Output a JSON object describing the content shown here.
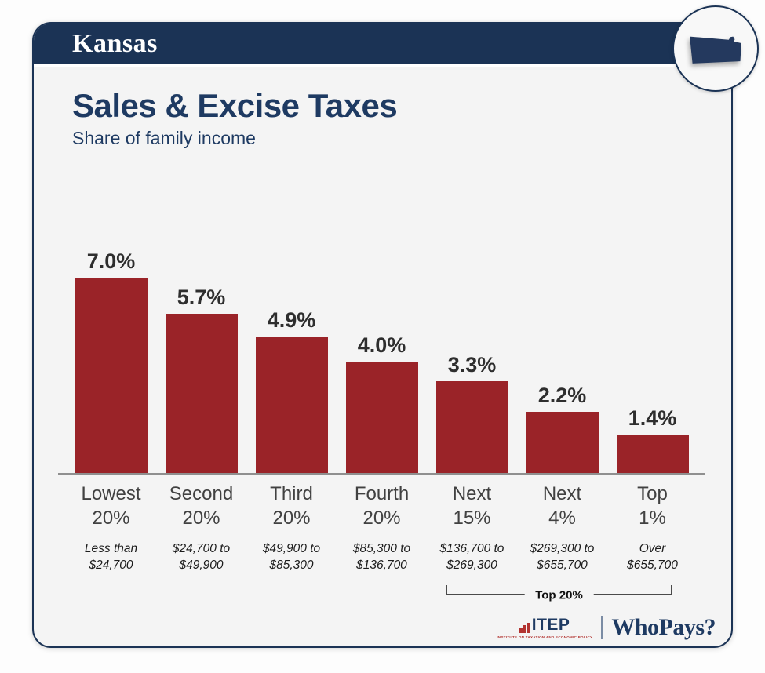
{
  "header": {
    "state": "Kansas"
  },
  "title": "Sales & Excise Taxes",
  "subtitle": "Share of family income",
  "chart_data": {
    "type": "bar",
    "title": "Sales & Excise Taxes",
    "subtitle": "Share of family income",
    "unit": "percent of family income",
    "categories": [
      "Lowest 20%",
      "Second 20%",
      "Third 20%",
      "Fourth 20%",
      "Next 15%",
      "Next 4%",
      "Top 1%"
    ],
    "category_lines": [
      [
        "Lowest",
        "20%"
      ],
      [
        "Second",
        "20%"
      ],
      [
        "Third",
        "20%"
      ],
      [
        "Fourth",
        "20%"
      ],
      [
        "Next",
        "15%"
      ],
      [
        "Next",
        "4%"
      ],
      [
        "Top",
        "1%"
      ]
    ],
    "values": [
      7.0,
      5.7,
      4.9,
      4.0,
      3.3,
      2.2,
      1.4
    ],
    "labels": [
      "7.0%",
      "5.7%",
      "4.9%",
      "4.0%",
      "3.3%",
      "2.2%",
      "1.4%"
    ],
    "income_ranges": [
      [
        "Less than",
        "$24,700"
      ],
      [
        "$24,700 to",
        "$49,900"
      ],
      [
        "$49,900 to",
        "$85,300"
      ],
      [
        "$85,300 to",
        "$136,700"
      ],
      [
        "$136,700 to",
        "$269,300"
      ],
      [
        "$269,300 to",
        "$655,700"
      ],
      [
        "Over",
        "$655,700"
      ]
    ],
    "ylim": [
      0,
      7.0
    ],
    "grid": false,
    "legend": null,
    "bar_color": "#9a2328",
    "bracket": {
      "label": "Top 20%",
      "start_category": "Next 15%",
      "end_category": "Top 1%"
    }
  },
  "footer": {
    "itep_label": "ITEP",
    "itep_subtext": "INSTITUTE ON TAXATION AND ECONOMIC POLICY",
    "whopays_label": "WhoPays?"
  },
  "colors": {
    "header_navy": "#1b3355",
    "title_navy": "#1e3a62",
    "bar_red": "#9a2328",
    "value_text": "#2e2e2e",
    "category_text": "#414141",
    "income_text": "#1c1c1c",
    "baseline": "#8f8f8f",
    "card_bg": "#f4f4f4",
    "page_bg": "#fdfdfd"
  }
}
